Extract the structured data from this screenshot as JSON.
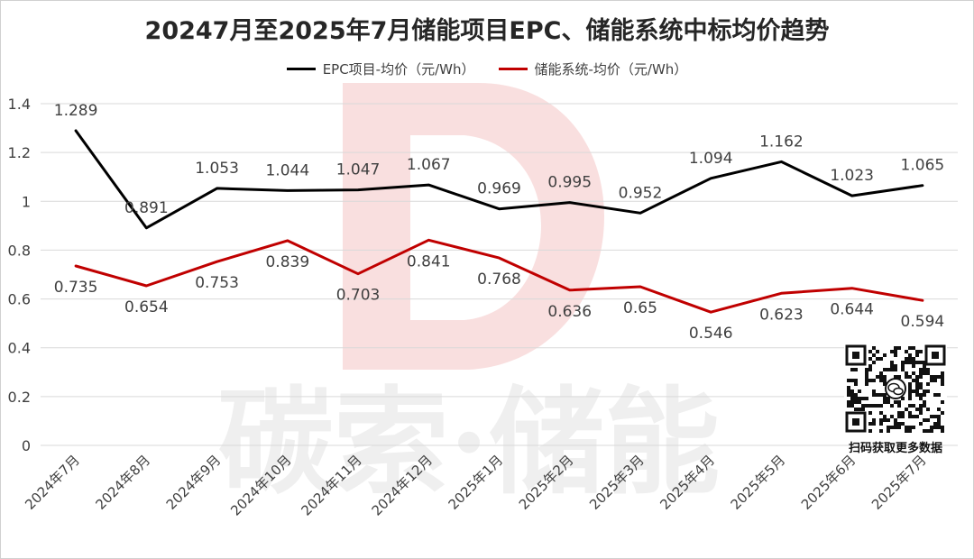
{
  "chart_data": {
    "type": "line",
    "title": "20247月至2025年7月储能项目EPC、储能系统中标均价趋势",
    "categories": [
      "2024年7月",
      "2024年8月",
      "2024年9月",
      "2024年10月",
      "2024年11月",
      "2024年12月",
      "2025年1月",
      "2025年2月",
      "2025年3月",
      "2025年4月",
      "2025年5月",
      "2025年6月",
      "2025年7月"
    ],
    "series": [
      {
        "name": "EPC项目-均价（元/Wh）",
        "color": "#000000",
        "values": [
          1.289,
          0.891,
          1.053,
          1.044,
          1.047,
          1.067,
          0.969,
          0.995,
          0.952,
          1.094,
          1.162,
          1.023,
          1.065
        ],
        "labels": [
          "1.289",
          "0.891",
          "1.053",
          "1.044",
          "1.047",
          "1.067",
          "0.969",
          "0.995",
          "0.952",
          "1.094",
          "1.162",
          "1.023",
          "1.065"
        ]
      },
      {
        "name": "储能系统-均价（元/Wh）",
        "color": "#c00000",
        "values": [
          0.735,
          0.654,
          0.753,
          0.839,
          0.703,
          0.841,
          0.768,
          0.636,
          0.65,
          0.546,
          0.623,
          0.644,
          0.594
        ],
        "labels": [
          "0.735",
          "0.654",
          "0.753",
          "0.839",
          "0.703",
          "0.841",
          "0.768",
          "0.636",
          "0.65",
          "0.546",
          "0.623",
          "0.644",
          "0.594"
        ]
      }
    ],
    "xlabel": "",
    "ylabel": "",
    "ylim": [
      0,
      1.4
    ],
    "yticks": [
      {
        "value": 0,
        "label": "0"
      },
      {
        "value": 0.2,
        "label": "0.2"
      },
      {
        "value": 0.4,
        "label": "0.4"
      },
      {
        "value": 0.6,
        "label": "0.6"
      },
      {
        "value": 0.8,
        "label": "0.8"
      },
      {
        "value": 1,
        "label": "1"
      },
      {
        "value": 1.2,
        "label": "1.2"
      },
      {
        "value": 1.4,
        "label": "1.4"
      }
    ],
    "grid": true,
    "legend": "top-center"
  },
  "watermark": {
    "text": "碳索·储能",
    "letter": "D"
  },
  "qr": {
    "caption": "扫码获取更多数据"
  },
  "colors": {
    "gridline": "#d9d9d9",
    "text": "#404040",
    "watermark": "#efefef",
    "watermark_logo": "#f8dcdc"
  }
}
